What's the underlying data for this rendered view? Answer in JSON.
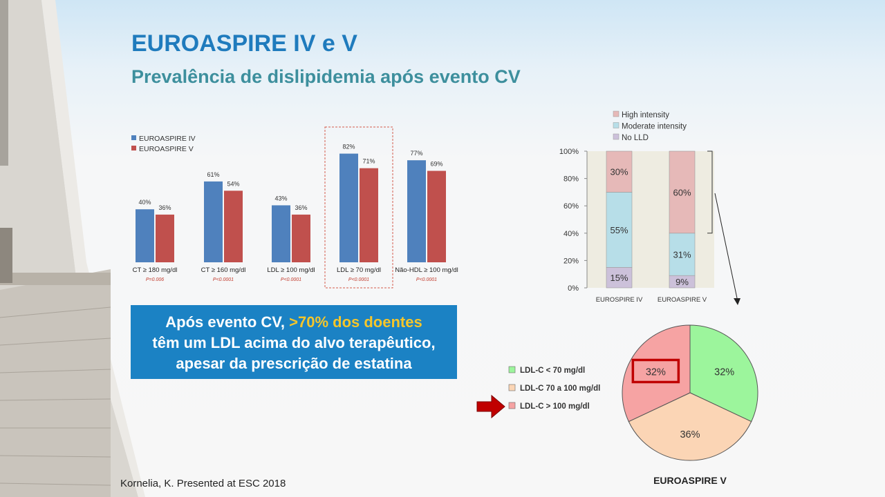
{
  "slide": {
    "title": "EUROASPIRE IV e V",
    "subtitle": "Prevalência de dislipidemia após evento CV",
    "callout": {
      "line1_prefix": "Após evento CV, ",
      "line1_highlight": ">70% dos doentes",
      "line2": "têm um LDL acima do alvo terapêutico,",
      "line3": "apesar da prescrição de estatina"
    },
    "credit": "Kornelia, K. Presented at ESC 2018",
    "colors": {
      "title": "#1f7bbd",
      "subtitle": "#3d8f9d",
      "callout_bg": "#1b82c4",
      "highlight": "#f6c62a"
    }
  },
  "chart_data": [
    {
      "type": "bar",
      "categories": [
        "CT ≥ 180 mg/dl",
        "CT ≥ 160 mg/dl",
        "LDL ≥ 100 mg/dl",
        "LDL ≥ 70 mg/dl",
        "Não-HDL ≥ 100 mg/dl"
      ],
      "p_values": [
        "P=0.006",
        "P<0.0001",
        "P<0.0001",
        "P<0.0001",
        "P<0.0001"
      ],
      "series": [
        {
          "name": "EUROASPIRE IV",
          "values": [
            40,
            61,
            43,
            82,
            77
          ],
          "labels": [
            "40%",
            "61%",
            "43%",
            "82%",
            "77%"
          ],
          "color": "#4f81bd"
        },
        {
          "name": "EUROASPIRE V",
          "values": [
            36,
            54,
            36,
            71,
            69
          ],
          "labels": [
            "36%",
            "54%",
            "36%",
            "71%",
            "69%"
          ],
          "color": "#c0504d"
        }
      ],
      "highlighted_category": "LDL ≥ 70 mg/dl",
      "ylim": [
        0,
        100
      ],
      "legend": "top-left"
    },
    {
      "type": "bar",
      "stacked": true,
      "categories": [
        "EUROSPIRE IV",
        "EUROASPIRE V"
      ],
      "yticks": [
        "0%",
        "20%",
        "40%",
        "60%",
        "80%",
        "100%"
      ],
      "series": [
        {
          "name": "No LLD",
          "values": [
            15,
            9
          ],
          "labels": [
            "15%",
            "9%"
          ],
          "color": "#ccc1da"
        },
        {
          "name": "Moderate intensity",
          "values": [
            55,
            31
          ],
          "labels": [
            "55%",
            "31%"
          ],
          "color": "#b7dee8"
        },
        {
          "name": "High intensity",
          "values": [
            30,
            60
          ],
          "labels": [
            "30%",
            "60%"
          ],
          "color": "#e6b9b8"
        }
      ],
      "ylim": [
        0,
        100
      ],
      "legend": "top"
    },
    {
      "type": "pie",
      "title": "EUROASPIRE V",
      "categories": [
        "LDL-C < 70 mg/dl",
        "LDL-C 70 a 100 mg/dl",
        "LDL-C > 100 mg/dl"
      ],
      "values": [
        32,
        36,
        32
      ],
      "labels": [
        "32%",
        "36%",
        "32%"
      ],
      "colors": [
        "#9cf59c",
        "#fbd5b5",
        "#f6a3a3"
      ],
      "highlighted_category": "LDL-C > 100 mg/dl",
      "legend": "left"
    }
  ]
}
